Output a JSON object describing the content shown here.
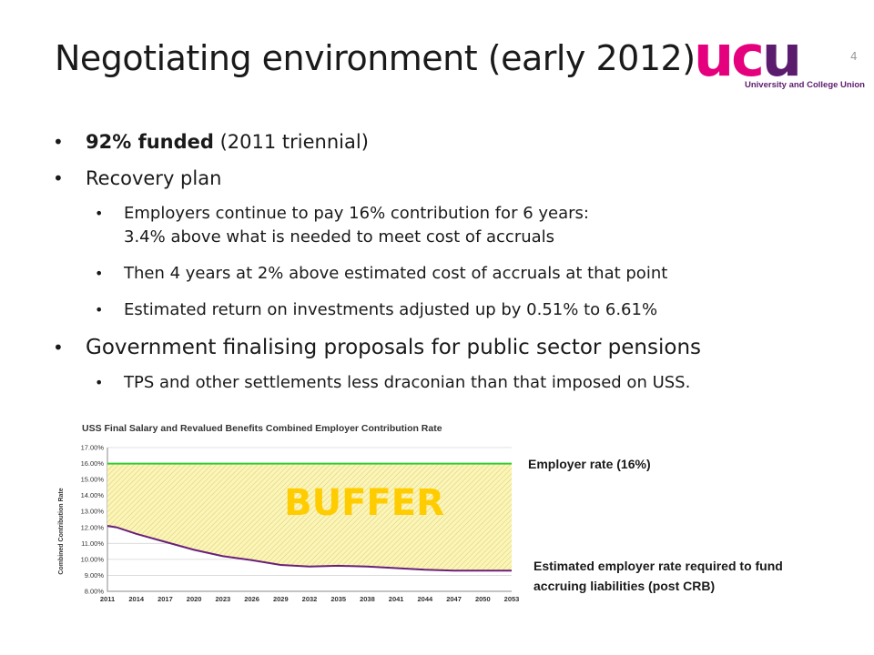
{
  "slide": {
    "title": "Negotiating environment (early 2012)",
    "page_number": "4"
  },
  "logo": {
    "letters": [
      "u",
      "c",
      "u"
    ],
    "tagline": "University and College Union",
    "colors": {
      "pink": "#e5007e",
      "purple": "#5c1c6e"
    }
  },
  "bullets": {
    "b1_bold": "92% funded",
    "b1_rest": " (2011 triennial)",
    "b2": "Recovery plan",
    "b2_sub1_line1": "Employers continue to pay 16% contribution for 6 years:",
    "b2_sub1_line2": "3.4% above what is needed to meet cost of accruals",
    "b2_sub2": "Then 4 years at 2% above estimated cost of accruals at that point",
    "b2_sub3": "Estimated return on investments adjusted up by 0.51% to 6.61%",
    "b3": "Government finalising proposals for public sector pensions",
    "b3_sub1": "TPS and other settlements less draconian than that imposed on USS."
  },
  "annotations": {
    "employer_rate": "Employer rate (16%)",
    "required_rate_line1": "Estimated employer rate required to fund",
    "required_rate_line2": "accruing liabilities (post CRB)"
  },
  "chart_data": {
    "type": "line",
    "title": "USS Final Salary and Revalued Benefits Combined Employer Contribution Rate",
    "ylabel": "Combined Contribution Rate",
    "xlabel": "",
    "overlay_label": "BUFFER",
    "ylim": [
      8,
      17
    ],
    "yticks": [
      "8.00%",
      "9.00%",
      "10.00%",
      "11.00%",
      "12.00%",
      "13.00%",
      "14.00%",
      "15.00%",
      "16.00%",
      "17.00%"
    ],
    "xticks": [
      "2011",
      "2014",
      "2017",
      "2020",
      "2023",
      "2026",
      "2029",
      "2032",
      "2035",
      "2038",
      "2041",
      "2044",
      "2047",
      "2050",
      "2053"
    ],
    "colors": {
      "employer": "#33cc33",
      "required": "#6a1f7a",
      "buffer_fill": "#fbf5b8",
      "buffer_hatch": "#d9c76a",
      "buffer_text": "#ffcc00"
    },
    "series": [
      {
        "key": "employer",
        "x": [
          2011,
          2053
        ],
        "values": [
          16.0,
          16.0
        ]
      },
      {
        "key": "required",
        "x": [
          2011,
          2012,
          2014,
          2017,
          2020,
          2023,
          2026,
          2029,
          2032,
          2035,
          2038,
          2041,
          2044,
          2047,
          2050,
          2053
        ],
        "values": [
          12.1,
          12.0,
          11.6,
          11.1,
          10.6,
          10.2,
          9.95,
          9.65,
          9.55,
          9.6,
          9.55,
          9.45,
          9.35,
          9.3,
          9.3,
          9.3
        ]
      }
    ]
  }
}
